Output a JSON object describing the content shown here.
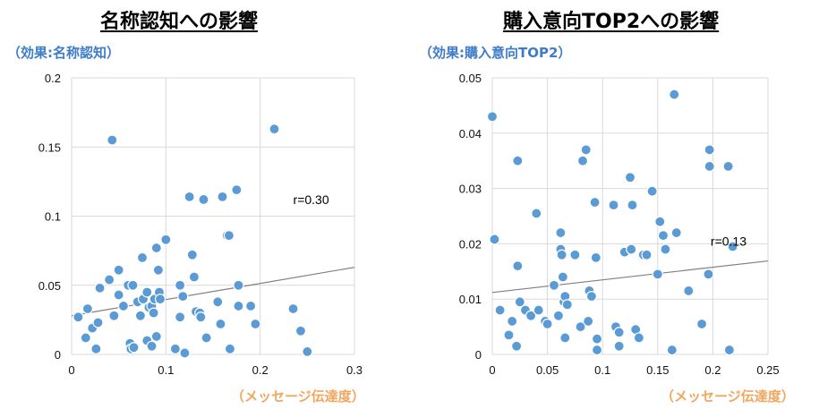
{
  "chart_data": [
    {
      "type": "scatter",
      "title": "名称認知への影響",
      "subtitle": "（効果:名称認知）",
      "xlabel": "（メッセージ伝達度）",
      "ylabel": "",
      "xlim": [
        0,
        0.3
      ],
      "ylim": [
        0,
        0.2
      ],
      "xticks": [
        "0",
        "0.1",
        "0.2",
        "0.3"
      ],
      "yticks": [
        "0",
        "0.05",
        "0.1",
        "0.15",
        "0.2"
      ],
      "annotation": "r=0.30",
      "grid": true,
      "trendline": {
        "x1": 0,
        "y1": 0.028,
        "x2": 0.3,
        "y2": 0.063
      },
      "points": [
        [
          0.007,
          0.027
        ],
        [
          0.015,
          0.012
        ],
        [
          0.017,
          0.033
        ],
        [
          0.022,
          0.019
        ],
        [
          0.026,
          0.004
        ],
        [
          0.028,
          0.023
        ],
        [
          0.03,
          0.048
        ],
        [
          0.04,
          0.054
        ],
        [
          0.043,
          0.155
        ],
        [
          0.045,
          0.028
        ],
        [
          0.05,
          0.061
        ],
        [
          0.05,
          0.043
        ],
        [
          0.055,
          0.035
        ],
        [
          0.06,
          0.05
        ],
        [
          0.062,
          0.008
        ],
        [
          0.063,
          0.004
        ],
        [
          0.065,
          0.05
        ],
        [
          0.066,
          0.005
        ],
        [
          0.07,
          0.038
        ],
        [
          0.073,
          0.028
        ],
        [
          0.075,
          0.07
        ],
        [
          0.076,
          0.04
        ],
        [
          0.08,
          0.045
        ],
        [
          0.08,
          0.01
        ],
        [
          0.082,
          0.034
        ],
        [
          0.085,
          0.006
        ],
        [
          0.085,
          0.035
        ],
        [
          0.087,
          0.03
        ],
        [
          0.088,
          0.04
        ],
        [
          0.09,
          0.013
        ],
        [
          0.09,
          0.077
        ],
        [
          0.092,
          0.061
        ],
        [
          0.093,
          0.045
        ],
        [
          0.094,
          0.04
        ],
        [
          0.1,
          0.083
        ],
        [
          0.11,
          0.004
        ],
        [
          0.115,
          0.05
        ],
        [
          0.115,
          0.027
        ],
        [
          0.118,
          0.042
        ],
        [
          0.12,
          0.001
        ],
        [
          0.125,
          0.114
        ],
        [
          0.128,
          0.072
        ],
        [
          0.13,
          0.056
        ],
        [
          0.132,
          0.031
        ],
        [
          0.136,
          0.03
        ],
        [
          0.137,
          0.027
        ],
        [
          0.14,
          0.112
        ],
        [
          0.143,
          0.012
        ],
        [
          0.155,
          0.038
        ],
        [
          0.158,
          0.022
        ],
        [
          0.16,
          0.114
        ],
        [
          0.165,
          0.086
        ],
        [
          0.167,
          0.086
        ],
        [
          0.168,
          0.004
        ],
        [
          0.175,
          0.119
        ],
        [
          0.177,
          0.05
        ],
        [
          0.177,
          0.035
        ],
        [
          0.19,
          0.035
        ],
        [
          0.195,
          0.022
        ],
        [
          0.215,
          0.163
        ],
        [
          0.235,
          0.033
        ],
        [
          0.243,
          0.017
        ],
        [
          0.25,
          0.002
        ]
      ]
    },
    {
      "type": "scatter",
      "title": "購入意向TOP2への影響",
      "subtitle": "（効果:購入意向TOP2）",
      "xlabel": "（メッセージ伝達度）",
      "ylabel": "",
      "xlim": [
        0,
        0.25
      ],
      "ylim": [
        0,
        0.05
      ],
      "xticks": [
        "0",
        "0.05",
        "0.1",
        "0.15",
        "0.2",
        "0.25"
      ],
      "yticks": [
        "0",
        "0.01",
        "0.02",
        "0.03",
        "0.04",
        "0.05"
      ],
      "annotation": "r=0.13",
      "grid": true,
      "trendline": {
        "x1": 0,
        "y1": 0.0112,
        "x2": 0.25,
        "y2": 0.0169
      },
      "points": [
        [
          0.0,
          0.043
        ],
        [
          0.002,
          0.0208
        ],
        [
          0.007,
          0.008
        ],
        [
          0.015,
          0.0035
        ],
        [
          0.018,
          0.006
        ],
        [
          0.022,
          0.0015
        ],
        [
          0.023,
          0.035
        ],
        [
          0.023,
          0.016
        ],
        [
          0.025,
          0.0095
        ],
        [
          0.03,
          0.008
        ],
        [
          0.035,
          0.007
        ],
        [
          0.04,
          0.0255
        ],
        [
          0.042,
          0.008
        ],
        [
          0.048,
          0.006
        ],
        [
          0.05,
          0.0055
        ],
        [
          0.056,
          0.0125
        ],
        [
          0.06,
          0.007
        ],
        [
          0.062,
          0.022
        ],
        [
          0.062,
          0.019
        ],
        [
          0.063,
          0.018
        ],
        [
          0.064,
          0.014
        ],
        [
          0.065,
          0.0095
        ],
        [
          0.066,
          0.0105
        ],
        [
          0.066,
          0.003
        ],
        [
          0.068,
          0.009
        ],
        [
          0.075,
          0.018
        ],
        [
          0.08,
          0.005
        ],
        [
          0.082,
          0.035
        ],
        [
          0.085,
          0.037
        ],
        [
          0.087,
          0.006
        ],
        [
          0.088,
          0.0115
        ],
        [
          0.09,
          0.0105
        ],
        [
          0.093,
          0.0275
        ],
        [
          0.094,
          0.0175
        ],
        [
          0.095,
          0.0028
        ],
        [
          0.095,
          0.0008
        ],
        [
          0.11,
          0.027
        ],
        [
          0.112,
          0.005
        ],
        [
          0.115,
          0.004
        ],
        [
          0.115,
          0.0015
        ],
        [
          0.12,
          0.0185
        ],
        [
          0.125,
          0.032
        ],
        [
          0.126,
          0.019
        ],
        [
          0.127,
          0.027
        ],
        [
          0.13,
          0.0045
        ],
        [
          0.133,
          0.003
        ],
        [
          0.137,
          0.018
        ],
        [
          0.14,
          0.018
        ],
        [
          0.145,
          0.0295
        ],
        [
          0.15,
          0.0145
        ],
        [
          0.152,
          0.024
        ],
        [
          0.155,
          0.0215
        ],
        [
          0.157,
          0.019
        ],
        [
          0.163,
          0.0008
        ],
        [
          0.165,
          0.047
        ],
        [
          0.167,
          0.022
        ],
        [
          0.178,
          0.0115
        ],
        [
          0.19,
          0.0055
        ],
        [
          0.196,
          0.0145
        ],
        [
          0.197,
          0.037
        ],
        [
          0.197,
          0.034
        ],
        [
          0.214,
          0.034
        ],
        [
          0.215,
          0.0008
        ],
        [
          0.218,
          0.0195
        ]
      ]
    }
  ],
  "colors": {
    "point_fill": "#5b9bd5",
    "point_stroke": "#ffffff",
    "grid": "#d9d9d9",
    "trendline": "#7f7f7f",
    "subtitle": "#3d7cc9",
    "xlabel": "#f2a65e"
  }
}
